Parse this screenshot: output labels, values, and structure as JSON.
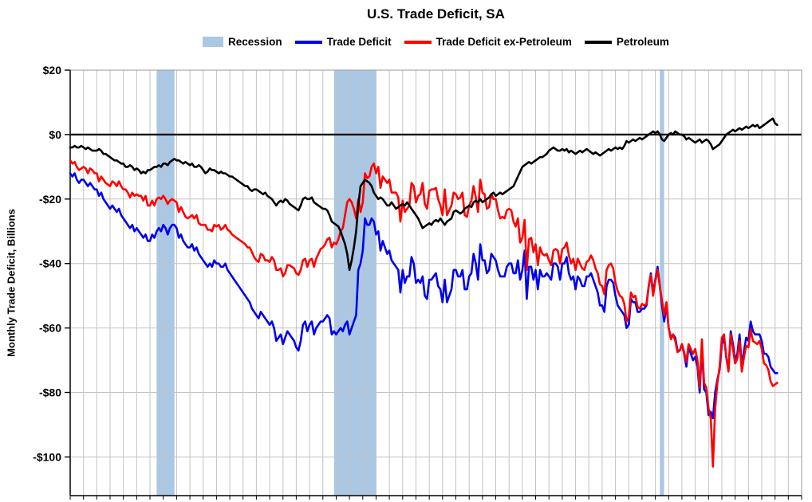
{
  "title": "U.S. Trade Deficit, SA",
  "y_axis_label": "Monthly Trade Deficit, Billions",
  "legend": [
    {
      "label": "Recession",
      "color": "#aac7e4",
      "swatch": "band"
    },
    {
      "label": "Trade Deficit",
      "color": "#0000ee",
      "swatch": "line"
    },
    {
      "label": "Trade Deficit ex-Petroleum",
      "color": "#ff0000",
      "swatch": "line"
    },
    {
      "label": "Petroleum",
      "color": "#000000",
      "swatch": "line"
    }
  ],
  "chart_data": {
    "type": "line",
    "title": "U.S. Trade Deficit, SA",
    "xlabel": "",
    "ylabel": "Monthly Trade Deficit, Billions",
    "x_unit": "monthly",
    "x_start": "1998-01",
    "x_end": "2024-08",
    "x_start_year": 1998.0,
    "xlim": [
      1998.0,
      2025.5
    ],
    "ylim": [
      -112,
      20
    ],
    "grid": true,
    "legend_position": "top",
    "recession_color": "#aac7e4",
    "recession_bands": [
      [
        2001.25,
        2001.92
      ],
      [
        2007.92,
        2009.5
      ],
      [
        2020.17,
        2020.33
      ]
    ],
    "y_ticks": [
      {
        "value": 20,
        "label": "$20"
      },
      {
        "value": 0,
        "label": "$0"
      },
      {
        "value": -20,
        "label": "-$20"
      },
      {
        "value": -40,
        "label": "-$40"
      },
      {
        "value": -60,
        "label": "-$60"
      },
      {
        "value": -80,
        "label": "-$80"
      },
      {
        "value": -100,
        "label": "-$100"
      }
    ],
    "series": [
      {
        "name": "Trade Deficit",
        "color": "#0000ee",
        "values": [
          -12,
          -13,
          -12,
          -14,
          -15,
          -14,
          -14,
          -15,
          -16,
          -15,
          -16,
          -17,
          -17,
          -19,
          -18,
          -20,
          -21,
          -22,
          -23,
          -22,
          -23,
          -24,
          -23,
          -25,
          -26,
          -27,
          -28,
          -29,
          -28,
          -30,
          -29,
          -30,
          -31,
          -32,
          -31,
          -33,
          -33,
          -31,
          -32,
          -30,
          -29,
          -30,
          -28,
          -29,
          -31,
          -29,
          -28,
          -28,
          -29,
          -32,
          -31,
          -33,
          -34,
          -35,
          -35,
          -34,
          -36,
          -35,
          -37,
          -38,
          -39,
          -40,
          -41,
          -40,
          -41,
          -39,
          -40,
          -40,
          -41,
          -41,
          -40,
          -42,
          -43,
          -44,
          -45,
          -46,
          -47,
          -48,
          -49,
          -50,
          -51,
          -52,
          -54,
          -55,
          -56,
          -57,
          -55,
          -56,
          -57,
          -58,
          -59,
          -58,
          -60,
          -64,
          -63,
          -62,
          -65,
          -63,
          -61,
          -62,
          -63,
          -64,
          -66,
          -67,
          -64,
          -59,
          -58,
          -61,
          -59,
          -58,
          -62,
          -60,
          -59,
          -58,
          -58,
          -57,
          -56,
          -57,
          -62,
          -61,
          -62,
          -61,
          -60,
          -61,
          -59,
          -58,
          -62,
          -60,
          -58,
          -56,
          -42,
          -40,
          -36,
          -26,
          -28,
          -28,
          -26,
          -27,
          -31,
          -30,
          -36,
          -33,
          -35,
          -37,
          -36,
          -39,
          -40,
          -41,
          -42,
          -49,
          -42,
          -46,
          -44,
          -44,
          -38,
          -40,
          -46,
          -45,
          -46,
          -44,
          -50,
          -51,
          -45,
          -45,
          -44,
          -43,
          -47,
          -48,
          -52,
          -45,
          -52,
          -50,
          -48,
          -42,
          -42,
          -44,
          -44,
          -42,
          -48,
          -48,
          -44,
          -43,
          -37,
          -40,
          -45,
          -34,
          -39,
          -39,
          -43,
          -42,
          -37,
          -38,
          -39,
          -42,
          -44,
          -44,
          -44,
          -41,
          -40,
          -40,
          -43,
          -43,
          -39,
          -45,
          -42,
          -36,
          -51,
          -41,
          -41,
          -45,
          -42,
          -48,
          -42,
          -44,
          -44,
          -43,
          -44,
          -45,
          -40,
          -40,
          -41,
          -45,
          -40,
          -40,
          -38,
          -43,
          -45,
          -44,
          -48,
          -44,
          -45,
          -47,
          -47,
          -44,
          -44,
          -43,
          -45,
          -47,
          -49,
          -53,
          -53,
          -55,
          -47,
          -45,
          -45,
          -46,
          -50,
          -53,
          -54,
          -55,
          -56,
          -60,
          -59,
          -51,
          -52,
          -52,
          -55,
          -55,
          -54,
          -54,
          -53,
          -47,
          -43,
          -49,
          -45,
          -41,
          -47,
          -53,
          -58,
          -53,
          -60,
          -63,
          -62,
          -63,
          -67,
          -67,
          -65,
          -68,
          -72,
          -66,
          -68,
          -70,
          -69,
          -72,
          -80,
          -66,
          -79,
          -80,
          -87,
          -86,
          -88,
          -80,
          -76,
          -73,
          -65,
          -63,
          -69,
          -73,
          -61,
          -65,
          -70,
          -68,
          -62,
          -72,
          -67,
          -63,
          -64,
          -58,
          -61,
          -62,
          -62,
          -62,
          -64,
          -68,
          -68,
          -69,
          -72,
          -73,
          -74,
          -74
        ]
      },
      {
        "name": "Trade Deficit ex-Petroleum",
        "color": "#ff0000",
        "values": [
          -8,
          -9,
          -8.5,
          -10,
          -11,
          -10.5,
          -10,
          -10.5,
          -12,
          -10.5,
          -11,
          -12,
          -12,
          -14.5,
          -13,
          -14,
          -15,
          -15.5,
          -16,
          -14.5,
          -15,
          -16,
          -14.5,
          -16,
          -17,
          -17,
          -18,
          -19.5,
          -18,
          -19,
          -18.5,
          -19,
          -19,
          -20.5,
          -19,
          -22,
          -22,
          -20.5,
          -22,
          -20,
          -19.5,
          -20,
          -19,
          -20,
          -21.5,
          -20.5,
          -20,
          -20.5,
          -21,
          -24,
          -22.5,
          -24,
          -25.5,
          -26,
          -25.5,
          -25,
          -26,
          -25,
          -27.5,
          -28,
          -28,
          -28,
          -29.5,
          -29.5,
          -30,
          -28,
          -28.5,
          -28,
          -29.5,
          -29,
          -28,
          -29.5,
          -30,
          -31,
          -31.5,
          -32,
          -32.5,
          -33,
          -33.5,
          -34,
          -35,
          -35,
          -36.5,
          -38,
          -39,
          -39.5,
          -37,
          -37.5,
          -39,
          -39,
          -39.5,
          -38,
          -39,
          -42,
          -42,
          -41.5,
          -44,
          -43,
          -40.5,
          -40.5,
          -41,
          -41.5,
          -43,
          -43.5,
          -42,
          -39,
          -38.5,
          -41,
          -39,
          -38.5,
          -41,
          -38.5,
          -37,
          -35.5,
          -35,
          -34,
          -32.5,
          -32,
          -35,
          -33.5,
          -34,
          -32.5,
          -30,
          -29,
          -25,
          -21,
          -20,
          -21,
          -23,
          -26,
          -20,
          -24,
          -21,
          -12,
          -13.5,
          -13,
          -10,
          -9,
          -12,
          -10,
          -16.5,
          -13,
          -14,
          -15,
          -14,
          -18,
          -18,
          -18,
          -19.5,
          -27,
          -20.5,
          -24,
          -23,
          -22,
          -15,
          -16,
          -21,
          -19,
          -18.5,
          -15,
          -21.5,
          -23,
          -17.5,
          -17,
          -17,
          -16.5,
          -20,
          -22,
          -25,
          -17,
          -25,
          -23.5,
          -22,
          -18,
          -18.5,
          -20,
          -19.5,
          -18,
          -25,
          -25.5,
          -22,
          -20.5,
          -16,
          -19.5,
          -24,
          -14,
          -18,
          -18.5,
          -23,
          -22.5,
          -18.5,
          -20,
          -20,
          -23.5,
          -26,
          -25.5,
          -26,
          -23.5,
          -23,
          -23.5,
          -27,
          -28.5,
          -26,
          -33.5,
          -32,
          -26.5,
          -42,
          -32.5,
          -32,
          -36.5,
          -34,
          -40.5,
          -35,
          -37,
          -37.5,
          -37,
          -39,
          -40.5,
          -36,
          -35.5,
          -36,
          -40,
          -35.5,
          -35,
          -33.5,
          -37.5,
          -40,
          -38.5,
          -42,
          -38.5,
          -40,
          -41.5,
          -42,
          -39.5,
          -39,
          -37.5,
          -39,
          -41.5,
          -43,
          -46.5,
          -47,
          -49.5,
          -42,
          -40.5,
          -40,
          -41.5,
          -46,
          -48.5,
          -50,
          -50.5,
          -52.5,
          -58,
          -56.5,
          -49,
          -50.5,
          -50,
          -53.5,
          -54,
          -52.5,
          -53,
          -52.5,
          -47,
          -43.5,
          -50,
          -45.5,
          -42,
          -47,
          -51.5,
          -56,
          -52,
          -60,
          -63.5,
          -62,
          -64,
          -67.5,
          -67,
          -65,
          -67.5,
          -70.5,
          -65,
          -66.5,
          -68,
          -66.5,
          -70,
          -78.5,
          -63.5,
          -77,
          -78.5,
          -85,
          -88,
          -103,
          -85,
          -77,
          -72,
          -63,
          -62,
          -69,
          -73.5,
          -62,
          -66.5,
          -71,
          -69.5,
          -64,
          -73.5,
          -69,
          -65.5,
          -66,
          -60.5,
          -64,
          -64.5,
          -65,
          -64,
          -66.5,
          -71,
          -71.5,
          -73,
          -76.5,
          -78,
          -77.5,
          -77
        ]
      },
      {
        "name": "Petroleum",
        "color": "#000000",
        "values": [
          -4,
          -4,
          -3.5,
          -4,
          -4,
          -3.5,
          -4,
          -4.5,
          -4,
          -4.5,
          -5,
          -5,
          -5,
          -4.5,
          -5,
          -6,
          -6,
          -6.5,
          -7,
          -7.5,
          -8,
          -8,
          -8.5,
          -9,
          -9,
          -10,
          -10,
          -9.5,
          -10,
          -11,
          -10.5,
          -11,
          -12,
          -11.5,
          -12,
          -11,
          -11,
          -10.5,
          -10,
          -10,
          -9.5,
          -10,
          -9,
          -9,
          -9.5,
          -8.5,
          -8,
          -7.5,
          -8,
          -8,
          -8.5,
          -9,
          -8.5,
          -9,
          -9.5,
          -9,
          -10,
          -10,
          -9.5,
          -10,
          -11,
          -12,
          -11.5,
          -10.5,
          -11,
          -11,
          -11.5,
          -12,
          -11.5,
          -12,
          -12,
          -12.5,
          -13,
          -13,
          -13.5,
          -14,
          -14.5,
          -15,
          -15.5,
          -16,
          -16,
          -17,
          -17.5,
          -17,
          -17,
          -17.5,
          -18,
          -18.5,
          -18,
          -19,
          -19.5,
          -20,
          -21,
          -22,
          -21,
          -20.5,
          -21,
          -20,
          -20.5,
          -21.5,
          -22,
          -22.5,
          -23,
          -23.5,
          -22,
          -20,
          -19.5,
          -20,
          -20,
          -19.5,
          -21,
          -21.5,
          -22,
          -22.5,
          -23,
          -23,
          -23.5,
          -25,
          -27,
          -27.5,
          -28,
          -28.5,
          -30,
          -32,
          -34,
          -37,
          -42,
          -39,
          -35,
          -30,
          -22,
          -16,
          -15,
          -14,
          -14.5,
          -15,
          -16,
          -18,
          -19,
          -20,
          -19.5,
          -20,
          -21,
          -22,
          -22,
          -21,
          -22,
          -23,
          -22.5,
          -22,
          -21.5,
          -22,
          -21,
          -22,
          -23,
          -24,
          -25,
          -26,
          -27.5,
          -29,
          -28.5,
          -28,
          -27.5,
          -28,
          -27,
          -26.5,
          -27,
          -26,
          -27,
          -28,
          -27,
          -26.5,
          -26,
          -24,
          -23.5,
          -24,
          -24.5,
          -24,
          -23,
          -22.5,
          -22,
          -22.5,
          -21,
          -20.5,
          -21,
          -20,
          -21,
          -20.5,
          -20,
          -19.5,
          -18.5,
          -18,
          -19,
          -18.5,
          -18,
          -18.5,
          -18,
          -17.5,
          -17,
          -16.5,
          -16,
          -14.5,
          -13,
          -11.5,
          -10,
          -9.5,
          -9,
          -8.5,
          -9,
          -8.5,
          -8,
          -7.5,
          -7,
          -7,
          -6.5,
          -6,
          -5,
          -4.5,
          -4,
          -4.5,
          -5,
          -5,
          -4.5,
          -5,
          -4.5,
          -5.5,
          -5,
          -5.5,
          -6,
          -5.5,
          -5,
          -5.5,
          -5,
          -4.5,
          -5,
          -5.5,
          -6,
          -5.5,
          -6,
          -6.5,
          -6,
          -5.5,
          -5,
          -4.5,
          -5,
          -4.5,
          -4,
          -4.5,
          -4,
          -4.5,
          -3.5,
          -2,
          -2.5,
          -2,
          -1.5,
          -2,
          -1.5,
          -1,
          -1.5,
          -1,
          -0.5,
          0,
          0.5,
          1,
          0.5,
          1,
          0,
          -1.5,
          -2,
          -1,
          0,
          0.5,
          0,
          1,
          0.5,
          0,
          0,
          -0.5,
          -1.5,
          -1,
          -1.5,
          -2,
          -2.5,
          -2,
          -1.5,
          -2.5,
          -2,
          -1.5,
          -2,
          -3,
          -4.5,
          -4,
          -3.5,
          -3,
          -2,
          -1,
          0,
          0.5,
          1,
          1.5,
          1,
          1.5,
          2,
          1.5,
          2,
          2.5,
          2,
          2.5,
          3,
          2.5,
          3,
          2,
          2.5,
          3,
          3.5,
          4,
          4.5,
          5,
          3.5,
          3
        ]
      }
    ]
  }
}
